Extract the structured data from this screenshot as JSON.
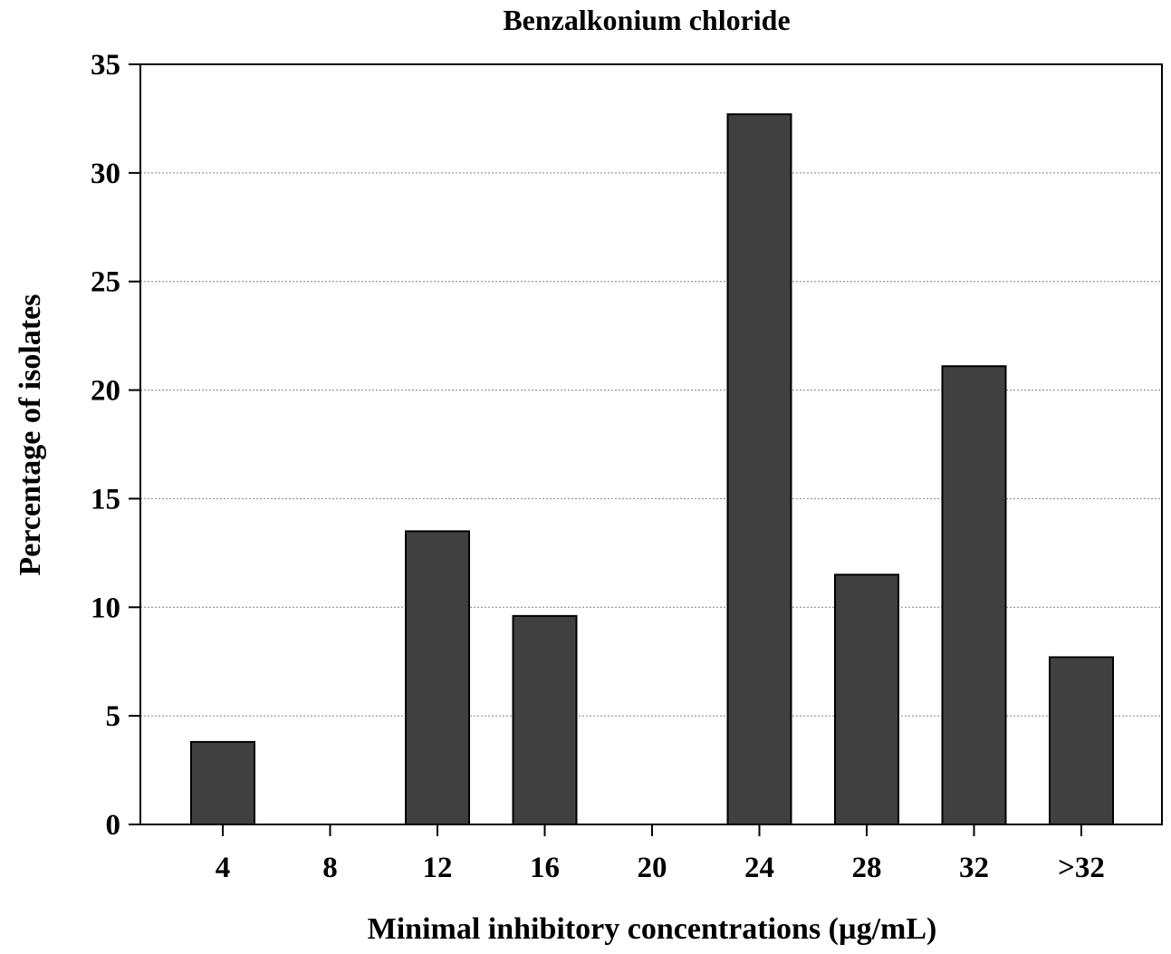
{
  "chart_data": {
    "type": "bar",
    "title": "Benzalkonium chloride",
    "xlabel": "Minimal inhibitory concentrations (µg/mL)",
    "ylabel": "Percentage of isolates",
    "categories": [
      "4",
      "8",
      "12",
      "16",
      "20",
      "24",
      "28",
      "32",
      ">32"
    ],
    "values": [
      3.8,
      0,
      13.5,
      9.6,
      0,
      32.7,
      11.5,
      21.1,
      7.7
    ],
    "ylim": [
      0,
      35
    ],
    "yticks": [
      0,
      5,
      10,
      15,
      20,
      25,
      30,
      35
    ],
    "grid": "horizontal dotted",
    "legend": "none",
    "colors": {
      "bar": "#404040",
      "bar_outline": "#000000",
      "grid": "#808080",
      "axis": "#000000"
    }
  }
}
